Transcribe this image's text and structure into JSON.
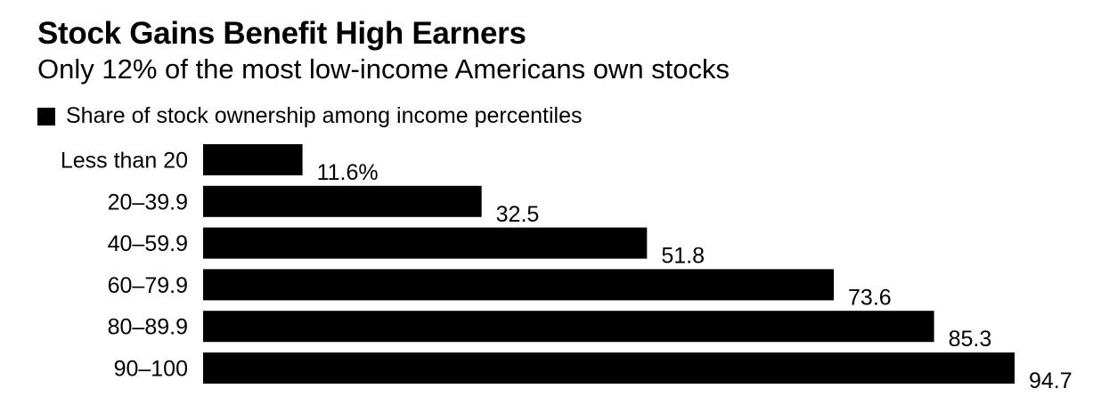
{
  "chart_data": {
    "type": "bar",
    "orientation": "horizontal",
    "title": "Stock Gains Benefit High Earners",
    "subtitle": "Only 12% of the most low-income Americans own stocks",
    "legend": [
      "Share of stock ownership among income percentiles"
    ],
    "categories": [
      "Less than 20",
      "20–39.9",
      "40–59.9",
      "60–79.9",
      "80–89.9",
      "90–100"
    ],
    "series": [
      {
        "name": "Share of stock ownership among income percentiles",
        "values": [
          11.6,
          32.5,
          51.8,
          73.6,
          85.3,
          94.7
        ],
        "labels": [
          "11.6%",
          "32.5",
          "51.8",
          "73.6",
          "85.3",
          "94.7"
        ]
      }
    ],
    "xlim": [
      0,
      100
    ],
    "grid": false,
    "colors": {
      "bar": "#000000"
    }
  }
}
